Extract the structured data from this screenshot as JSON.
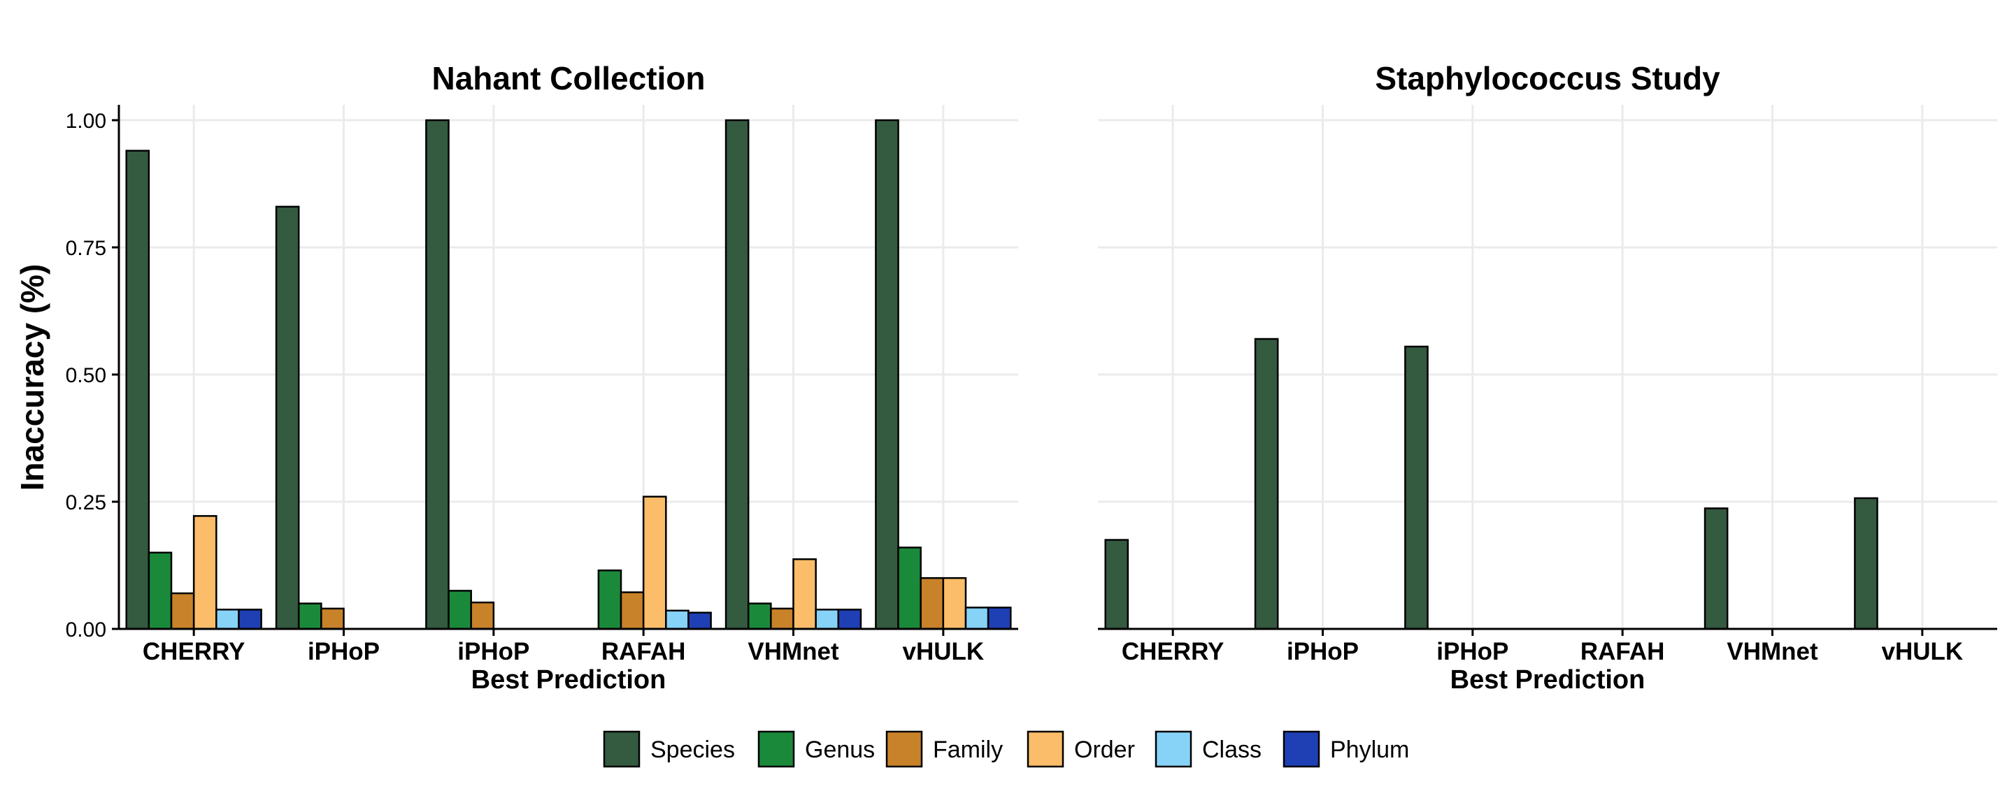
{
  "chart_data": [
    {
      "type": "bar",
      "title": "Nahant Collection",
      "xlabel": "Best Prediction",
      "ylabel": "Inaccuracy (%)",
      "ylim": [
        0,
        1
      ],
      "yticks": [
        "0.00",
        "0.25",
        "0.50",
        "0.75",
        "1.00"
      ],
      "categories": [
        "CHERRY",
        "iPHoP",
        "iPHoP",
        "RAFAH",
        "VHMnet",
        "vHULK"
      ],
      "grid": true,
      "series": [
        {
          "name": "Species",
          "values": [
            0.94,
            0.83,
            1.0,
            null,
            1.0,
            1.0
          ]
        },
        {
          "name": "Genus",
          "values": [
            0.15,
            0.05,
            0.075,
            0.115,
            0.05,
            0.16
          ]
        },
        {
          "name": "Family",
          "values": [
            0.07,
            0.04,
            0.052,
            0.072,
            0.04,
            0.1
          ]
        },
        {
          "name": "Order",
          "values": [
            0.222,
            null,
            null,
            0.26,
            0.137,
            0.1
          ]
        },
        {
          "name": "Class",
          "values": [
            0.038,
            null,
            null,
            0.036,
            0.038,
            0.042
          ]
        },
        {
          "name": "Phylum",
          "values": [
            0.038,
            null,
            null,
            0.032,
            0.038,
            0.042
          ]
        }
      ]
    },
    {
      "type": "bar",
      "title": "Staphylococcus Study",
      "xlabel": "Best Prediction",
      "ylabel": "",
      "ylim": [
        0,
        1
      ],
      "categories": [
        "CHERRY",
        "iPHoP",
        "iPHoP",
        "RAFAH",
        "VHMnet",
        "vHULK"
      ],
      "grid": true,
      "series": [
        {
          "name": "Species",
          "values": [
            0.175,
            0.57,
            0.555,
            null,
            0.237,
            0.257
          ]
        },
        {
          "name": "Genus",
          "values": [
            null,
            null,
            null,
            null,
            null,
            null
          ]
        },
        {
          "name": "Family",
          "values": [
            null,
            null,
            null,
            null,
            null,
            null
          ]
        },
        {
          "name": "Order",
          "values": [
            null,
            null,
            null,
            null,
            null,
            null
          ]
        },
        {
          "name": "Class",
          "values": [
            null,
            null,
            null,
            null,
            null,
            null
          ]
        },
        {
          "name": "Phylum",
          "values": [
            null,
            null,
            null,
            null,
            null,
            null
          ]
        }
      ]
    }
  ],
  "legend": {
    "position": "bottom",
    "items": [
      {
        "label": "Species",
        "color": "#345a40"
      },
      {
        "label": "Genus",
        "color": "#1a8a3a"
      },
      {
        "label": "Family",
        "color": "#c8822a"
      },
      {
        "label": "Order",
        "color": "#fbbd6a"
      },
      {
        "label": "Class",
        "color": "#87d3f8"
      },
      {
        "label": "Phylum",
        "color": "#1f40b4"
      }
    ]
  }
}
